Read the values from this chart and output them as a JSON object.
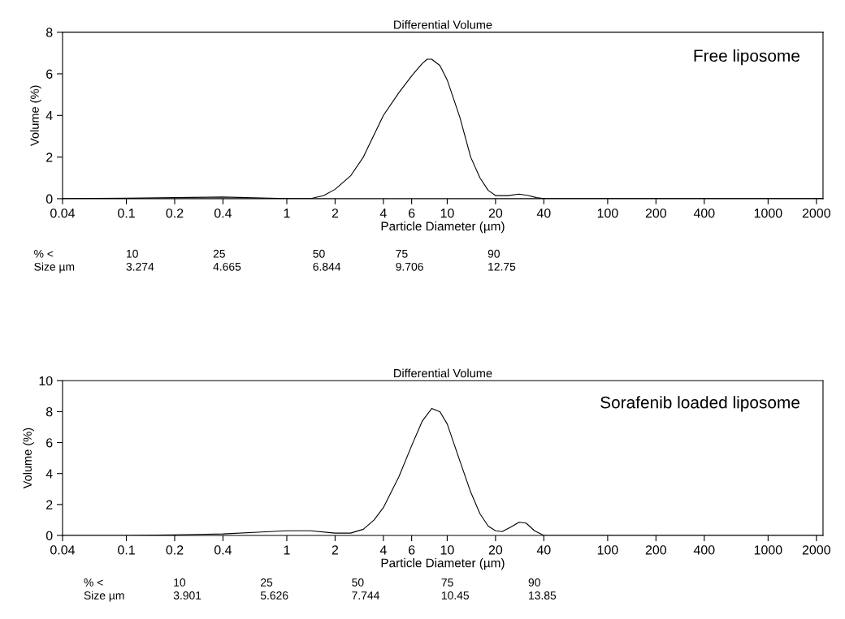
{
  "chart_data": [
    {
      "type": "line",
      "title": "Differential Volume",
      "xlabel": "Particle Diameter (µm)",
      "ylabel": "Volume (%)",
      "log": "x",
      "grid": false,
      "legend": false,
      "series": [
        {
          "name": "Free liposome",
          "color": "#000000",
          "x": [
            0.04,
            0.1,
            0.2,
            0.4,
            0.7,
            1,
            1.4,
            1.7,
            2,
            2.5,
            3,
            4,
            5,
            6,
            7,
            7.5,
            8,
            9,
            10,
            12,
            14,
            16,
            18,
            20,
            24,
            28,
            32,
            36,
            40,
            2200
          ],
          "values": [
            0,
            0.02,
            0.05,
            0.08,
            0.03,
            0,
            0,
            0.15,
            0.45,
            1.1,
            2.0,
            4.0,
            5.1,
            5.9,
            6.5,
            6.7,
            6.7,
            6.4,
            5.7,
            3.9,
            2.0,
            1.0,
            0.4,
            0.15,
            0.15,
            0.22,
            0.15,
            0.05,
            0,
            0
          ]
        }
      ],
      "xlim": [
        0.04,
        2200
      ],
      "xticks": [
        0.04,
        0.1,
        0.2,
        0.4,
        1,
        2,
        4,
        6,
        10,
        20,
        40,
        100,
        200,
        400,
        1000,
        2000
      ],
      "ylim": [
        0,
        8
      ],
      "yticks": [
        0,
        2,
        4,
        6,
        8
      ],
      "annotations": [
        "% <",
        "10",
        "25",
        "50",
        "75",
        "90",
        "Size µm",
        "3.274",
        "4.665",
        "6.844",
        "9.706",
        "12.75"
      ]
    },
    {
      "type": "line",
      "title": "Differential Volume",
      "xlabel": "Particle Diameter (µm)",
      "ylabel": "Volume (%)",
      "log": "x",
      "grid": false,
      "legend": false,
      "series": [
        {
          "name": "Sorafenib loaded liposome",
          "color": "#000000",
          "x": [
            0.04,
            0.1,
            0.2,
            0.4,
            0.7,
            1,
            1.4,
            2,
            2.5,
            3,
            3.5,
            4,
            5,
            6,
            7,
            8,
            9,
            10,
            12,
            14,
            16,
            18,
            20,
            22,
            25,
            28,
            31,
            35,
            40,
            2200
          ],
          "values": [
            0,
            0,
            0.03,
            0.1,
            0.22,
            0.3,
            0.3,
            0.15,
            0.15,
            0.4,
            1.0,
            1.8,
            3.8,
            5.8,
            7.4,
            8.2,
            8.0,
            7.2,
            4.8,
            2.8,
            1.4,
            0.6,
            0.3,
            0.25,
            0.55,
            0.85,
            0.8,
            0.3,
            0,
            0
          ]
        }
      ],
      "xlim": [
        0.04,
        2200
      ],
      "xticks": [
        0.04,
        0.1,
        0.2,
        0.4,
        1,
        2,
        4,
        6,
        10,
        20,
        40,
        100,
        200,
        400,
        1000,
        2000
      ],
      "ylim": [
        0,
        10
      ],
      "yticks": [
        0,
        2,
        4,
        6,
        8,
        10
      ],
      "annotations": [
        "% <",
        "10",
        "25",
        "50",
        "75",
        "90",
        "Size µm",
        "3.901",
        "5.626",
        "7.744",
        "10.45",
        "13.85"
      ]
    }
  ]
}
